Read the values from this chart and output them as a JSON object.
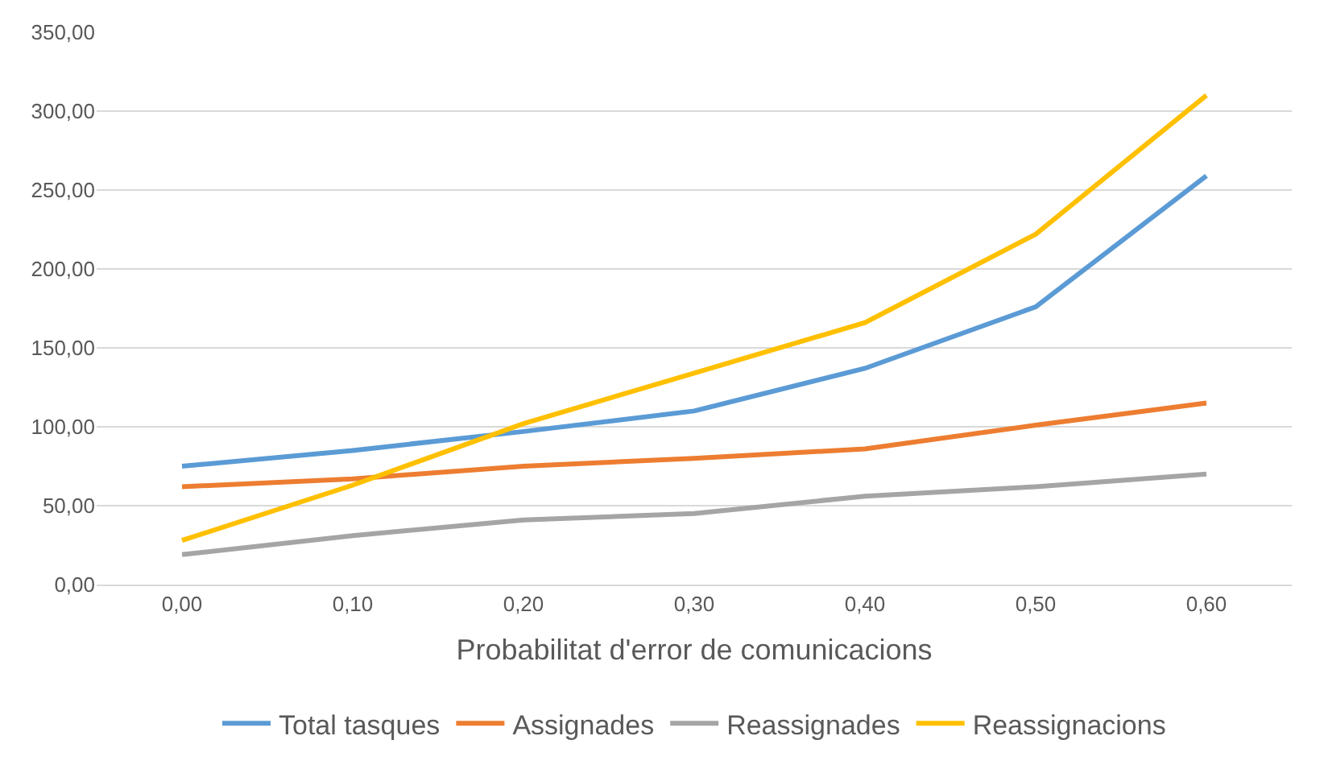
{
  "chart_data": {
    "type": "line",
    "xlabel": "Probabilitat d'error de comunicacions",
    "categories": [
      "0,00",
      "0,10",
      "0,20",
      "0,30",
      "0,40",
      "0,50",
      "0,60"
    ],
    "series": [
      {
        "name": "Total tasques",
        "color": "#5b9bd5",
        "values": [
          75,
          85,
          97,
          110,
          137,
          176,
          259
        ]
      },
      {
        "name": "Assignades",
        "color": "#ed7d31",
        "values": [
          62,
          67,
          75,
          80,
          86,
          101,
          115
        ]
      },
      {
        "name": "Reassignades",
        "color": "#a5a5a5",
        "values": [
          19,
          31,
          41,
          45,
          56,
          62,
          70
        ]
      },
      {
        "name": "Reassignacions",
        "color": "#ffc000",
        "values": [
          28,
          63,
          102,
          134,
          166,
          222,
          310
        ]
      }
    ],
    "ylim": [
      0,
      350
    ],
    "yticks": [
      {
        "value": 0,
        "label": "0,00"
      },
      {
        "value": 50,
        "label": "50,00"
      },
      {
        "value": 100,
        "label": "100,00"
      },
      {
        "value": 150,
        "label": "150,00"
      },
      {
        "value": 200,
        "label": "200,00"
      },
      {
        "value": 250,
        "label": "250,00"
      },
      {
        "value": 300,
        "label": "300,00"
      },
      {
        "value": 350,
        "label": "350,00"
      }
    ],
    "grid": "y",
    "legend": "bottom",
    "marker": "none",
    "line_style": "solid"
  }
}
